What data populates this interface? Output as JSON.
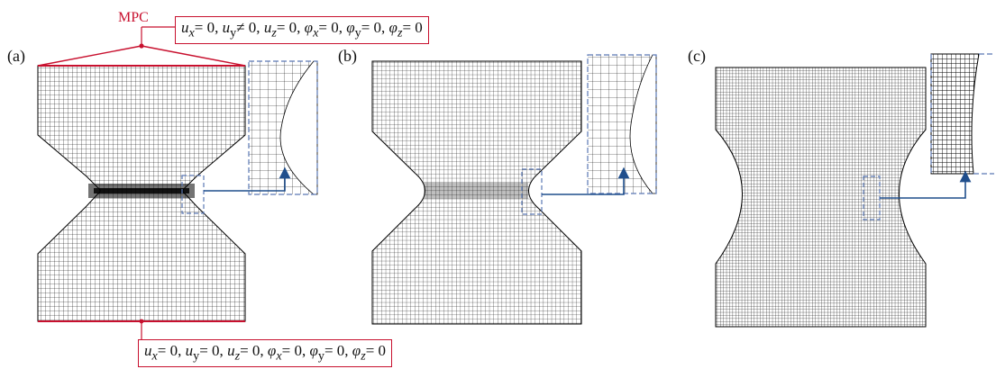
{
  "panels": [
    {
      "label": "(a)"
    },
    {
      "label": "(b)"
    },
    {
      "label": "(c)"
    }
  ],
  "mpc_label": "MPC",
  "top_condition": {
    "text": "u_x = 0, u_y ≠ 0, u_z = 0, φ_x = 0, φ_y = 0, φ_z = 0",
    "parts": [
      "u",
      "x",
      "= 0, ",
      "u",
      "y",
      "≠ 0, ",
      "u",
      "z",
      "= 0, ",
      "φ",
      "x",
      "= 0, ",
      "φ",
      "y",
      "= 0, ",
      "φ",
      "z",
      "= 0"
    ]
  },
  "bottom_condition": {
    "text": "u_x = 0, u_y = 0, u_z = 0, φ_x = 0, φ_y = 0, φ_z = 0",
    "parts": [
      "u",
      "x",
      "= 0, ",
      "u",
      "y",
      "= 0, ",
      "u",
      "z",
      "= 0, ",
      "φ",
      "x",
      "= 0, ",
      "φ",
      "y",
      "= 0, ",
      "φ",
      "z",
      "= 0"
    ]
  },
  "colors": {
    "boundary": "#c8102e",
    "arrow": "#1f4e8c",
    "zoom_box": "#5a78b4",
    "mesh": "#000000"
  }
}
